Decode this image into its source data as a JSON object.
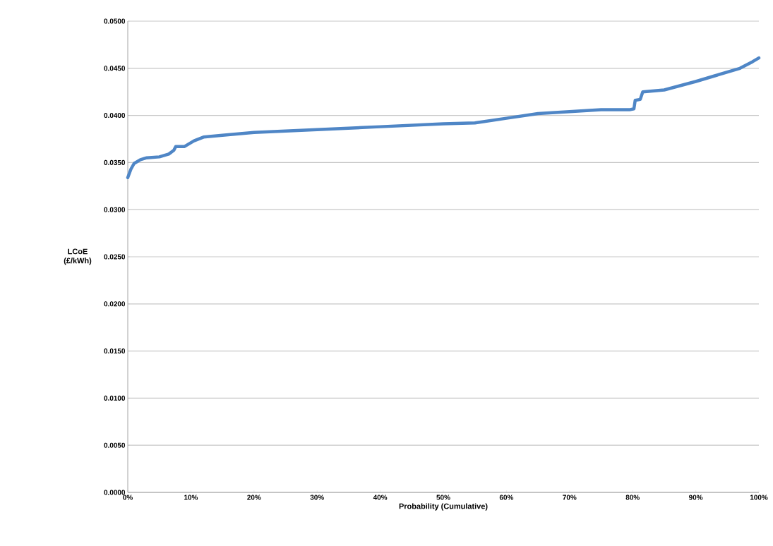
{
  "chart_data": {
    "type": "line",
    "xlabel": "Probability (Cumulative)",
    "ylabel": "LCoE (£/kWh)",
    "x": [
      0,
      0.5,
      1,
      2,
      3,
      5,
      6.5,
      7.3,
      7.6,
      9,
      10.5,
      12,
      15,
      20,
      30,
      40,
      50,
      55,
      60,
      65,
      70,
      75,
      79.5,
      80.2,
      80.4,
      81.2,
      81.6,
      85,
      90,
      93,
      97,
      99,
      100
    ],
    "series": [
      {
        "color": "#4f86c6",
        "values": [
          0.0334,
          0.0343,
          0.0349,
          0.0353,
          0.0355,
          0.0356,
          0.0359,
          0.0363,
          0.0367,
          0.0367,
          0.0373,
          0.0377,
          0.0379,
          0.0382,
          0.0385,
          0.0388,
          0.0391,
          0.0392,
          0.0397,
          0.0402,
          0.0404,
          0.0406,
          0.0406,
          0.0407,
          0.0416,
          0.0417,
          0.0425,
          0.0427,
          0.0436,
          0.0442,
          0.045,
          0.0457,
          0.0461
        ]
      }
    ],
    "xlim": [
      0,
      100
    ],
    "ylim": [
      0,
      0.05
    ],
    "xticks": [
      {
        "value": 0,
        "label": "0%"
      },
      {
        "value": 10,
        "label": "10%"
      },
      {
        "value": 20,
        "label": "20%"
      },
      {
        "value": 30,
        "label": "30%"
      },
      {
        "value": 40,
        "label": "40%"
      },
      {
        "value": 50,
        "label": "50%"
      },
      {
        "value": 60,
        "label": "60%"
      },
      {
        "value": 70,
        "label": "70%"
      },
      {
        "value": 80,
        "label": "80%"
      },
      {
        "value": 90,
        "label": "90%"
      },
      {
        "value": 100,
        "label": "100%"
      }
    ],
    "yticks": [
      {
        "value": 0,
        "label": "0.0000"
      },
      {
        "value": 0.005,
        "label": "0.0050"
      },
      {
        "value": 0.01,
        "label": "0.0100"
      },
      {
        "value": 0.015,
        "label": "0.0150"
      },
      {
        "value": 0.02,
        "label": "0.0200"
      },
      {
        "value": 0.025,
        "label": "0.0250"
      },
      {
        "value": 0.03,
        "label": "0.0300"
      },
      {
        "value": 0.035,
        "label": "0.0350"
      },
      {
        "value": 0.04,
        "label": "0.0400"
      },
      {
        "value": 0.045,
        "label": "0.0450"
      },
      {
        "value": 0.05,
        "label": "0.0500"
      }
    ],
    "grid": "y",
    "marker": "none",
    "line_style": "solid"
  }
}
